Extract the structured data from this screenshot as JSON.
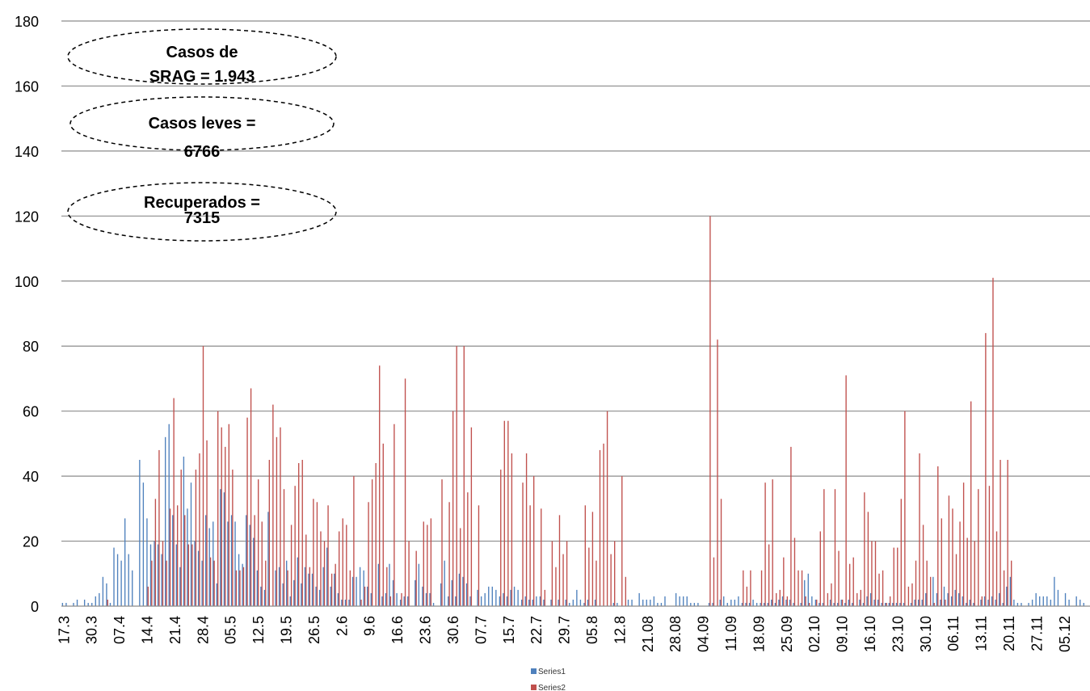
{
  "chart_data": {
    "type": "bar",
    "ylim": [
      0,
      180
    ],
    "yticks": [
      0,
      20,
      40,
      60,
      80,
      100,
      120,
      140,
      160,
      180
    ],
    "grid": true,
    "legend_placement": "bottom-center",
    "x_tick_labels": [
      "17.3",
      "30.3",
      "07.4",
      "14.4",
      "21.4",
      "28.4",
      "05.5",
      "12.5",
      "19.5",
      "26.5",
      "2.6",
      "9.6",
      "16.6",
      "23.6",
      "30.6",
      "07.7",
      "15.7",
      "22.7",
      "29.7",
      "05.8",
      "12.8",
      "21.08",
      "28.08",
      "04.09",
      "11.09",
      "18.09",
      "25.09",
      "02.10",
      "09.10",
      "16.10",
      "23.10",
      "30.10",
      "06.11",
      "13.11",
      "20.11",
      "27.11",
      "05.12"
    ],
    "n_points": 280,
    "series": [
      {
        "name": "Series1",
        "color": "#4f81bd",
        "values": [
          1,
          1,
          0,
          1,
          2,
          0,
          2,
          1,
          1,
          3,
          4,
          9,
          7,
          1,
          18,
          16,
          14,
          27,
          16,
          11,
          0,
          45,
          38,
          27,
          19,
          20,
          19,
          16,
          52,
          56,
          28,
          19,
          12,
          46,
          30,
          38,
          20,
          17,
          14,
          28,
          24,
          26,
          7,
          36,
          35,
          26,
          28,
          26,
          16,
          13,
          28,
          25,
          21,
          11,
          6,
          5,
          29,
          0,
          11,
          12,
          7,
          14,
          3,
          8,
          15,
          7,
          12,
          10,
          10,
          6,
          5,
          12,
          18,
          6,
          10,
          4,
          2,
          2,
          2,
          9,
          9,
          12,
          11,
          6,
          4,
          0,
          13,
          3,
          4,
          13,
          8,
          4,
          2,
          3,
          3,
          0,
          8,
          13,
          6,
          4,
          4,
          1,
          0,
          7,
          14,
          3,
          8,
          3,
          10,
          9,
          7,
          3,
          0,
          5,
          3,
          4,
          6,
          6,
          5,
          3,
          4,
          3,
          5,
          6,
          5,
          2,
          3,
          2,
          2,
          3,
          3,
          2,
          0,
          2,
          0,
          2,
          0,
          2,
          1,
          2,
          5,
          2,
          1,
          2,
          0,
          2,
          0,
          0,
          0,
          0,
          1,
          1,
          0,
          0,
          2,
          2,
          0,
          4,
          2,
          2,
          2,
          3,
          1,
          1,
          3,
          0,
          0,
          4,
          3,
          3,
          3,
          1,
          1,
          1,
          0,
          0,
          1,
          1,
          0,
          2,
          3,
          1,
          2,
          2,
          3,
          1,
          1,
          1,
          2,
          1,
          1,
          1,
          1,
          2,
          1,
          2,
          3,
          2,
          2,
          1,
          0,
          1,
          8,
          10,
          3,
          2,
          1,
          1,
          0,
          2,
          1,
          1,
          2,
          1,
          2,
          1,
          0,
          2,
          1,
          3,
          4,
          2,
          2,
          1,
          1,
          1,
          1,
          1,
          1,
          1,
          0,
          1,
          2,
          2,
          2,
          4,
          0,
          9,
          4,
          2,
          6,
          4,
          3,
          5,
          4,
          3,
          1,
          2,
          1,
          0,
          2,
          3,
          2,
          3,
          2,
          4,
          1,
          6,
          9,
          2,
          1,
          1,
          0,
          1,
          2,
          4,
          3,
          3,
          3,
          2,
          9,
          5,
          0,
          4,
          2,
          0,
          3,
          2,
          1,
          0,
          0,
          0,
          0,
          0
        ]
      },
      {
        "name": "Series2",
        "color": "#c0504d",
        "values": [
          0,
          0,
          0,
          0,
          0,
          0,
          0,
          0,
          0,
          0,
          0,
          0,
          2,
          0,
          0,
          0,
          0,
          0,
          0,
          0,
          0,
          0,
          0,
          6,
          14,
          33,
          48,
          20,
          14,
          30,
          64,
          31,
          42,
          28,
          19,
          19,
          42,
          47,
          80,
          51,
          15,
          14,
          60,
          55,
          49,
          56,
          42,
          11,
          11,
          12,
          58,
          67,
          28,
          39,
          26,
          14,
          45,
          62,
          52,
          55,
          36,
          11,
          25,
          37,
          44,
          45,
          22,
          12,
          33,
          32,
          23,
          20,
          31,
          10,
          13,
          23,
          27,
          25,
          11,
          40,
          0,
          2,
          6,
          32,
          39,
          44,
          74,
          50,
          12,
          3,
          56,
          0,
          4,
          70,
          20,
          0,
          17,
          0,
          26,
          25,
          27,
          0,
          0,
          39,
          0,
          32,
          60,
          80,
          24,
          80,
          35,
          55,
          0,
          31,
          0,
          0,
          0,
          0,
          0,
          42,
          57,
          57,
          47,
          0,
          0,
          38,
          47,
          31,
          40,
          0,
          30,
          5,
          0,
          20,
          12,
          28,
          16,
          20,
          0,
          0,
          0,
          0,
          31,
          18,
          29,
          14,
          48,
          50,
          60,
          16,
          20,
          0,
          40,
          9,
          0,
          0,
          0,
          0,
          0,
          0,
          0,
          0,
          0,
          0,
          0,
          0,
          0,
          0,
          0,
          0,
          0,
          0,
          0,
          0,
          0,
          0,
          120,
          15,
          82,
          33,
          0,
          0,
          0,
          0,
          0,
          11,
          6,
          11,
          0,
          0,
          11,
          38,
          19,
          39,
          4,
          5,
          15,
          3,
          49,
          21,
          11,
          11,
          3,
          1,
          0,
          2,
          23,
          36,
          4,
          7,
          36,
          17,
          2,
          71,
          13,
          15,
          4,
          5,
          35,
          29,
          20,
          20,
          10,
          11,
          1,
          3,
          18,
          18,
          33,
          60,
          6,
          7,
          14,
          47,
          25,
          14,
          9,
          1,
          43,
          27,
          2,
          34,
          30,
          16,
          26,
          38,
          21,
          63,
          20,
          36,
          3,
          84,
          37,
          101,
          23,
          45,
          11,
          45,
          14,
          0,
          0,
          0,
          0,
          0,
          0
        ]
      }
    ]
  },
  "annotations": [
    {
      "text": "Casos de SRAG = 1.943",
      "lines": [
        "Casos de",
        "SRAG = 1.943"
      ]
    },
    {
      "text": "Casos leves = 6766",
      "lines": [
        "Casos leves =",
        "6766"
      ]
    },
    {
      "text": "Recuperados = 7315",
      "lines": [
        "Recuperados =",
        "7315"
      ]
    }
  ]
}
